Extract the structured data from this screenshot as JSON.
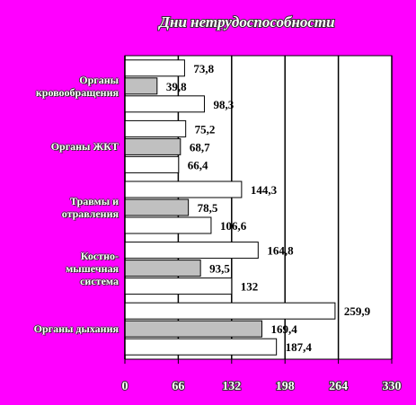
{
  "chart_data": {
    "type": "barh",
    "title": "Дни нетрудоспособности",
    "categories": [
      "Органы\nкровообращения",
      "Органы ЖКТ",
      "Травмы и\nотравления",
      "Костно-\nмышечная\nсистема",
      "Органы дыхания"
    ],
    "series": [
      {
        "color": "#ffffff",
        "values": [
          73.8,
          75.2,
          144.3,
          164.8,
          259.9
        ],
        "value_labels": [
          "73,8",
          "75,2",
          "144,3",
          "164,8",
          "259,9"
        ]
      },
      {
        "color": "#c0c0c0",
        "values": [
          39.8,
          68.7,
          78.5,
          93.5,
          169.4
        ],
        "value_labels": [
          "39,8",
          "68,7",
          "78,5",
          "93,5",
          "169,4"
        ]
      },
      {
        "color": "#ffffff",
        "values": [
          98.3,
          66.4,
          106.6,
          132,
          187.4
        ],
        "value_labels": [
          "98,3",
          "66,4",
          "106,6",
          "132",
          "187,4"
        ]
      }
    ],
    "xlim": [
      0,
      330
    ],
    "xticks": [
      0,
      66,
      132,
      198,
      264,
      330
    ],
    "grid": true
  }
}
